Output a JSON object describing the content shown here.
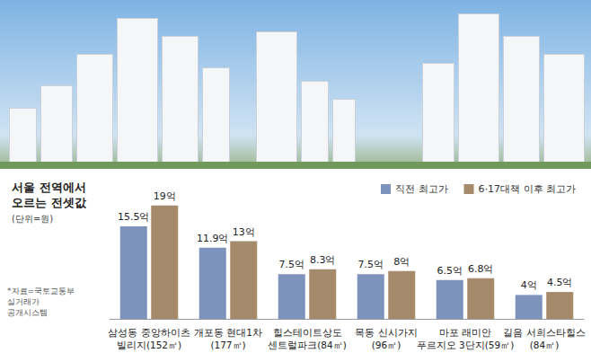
{
  "chart_data": {
    "type": "bar",
    "title": "서울 전역에서\n오르는 전셋값",
    "subtitle": "(단위=원)",
    "source": "*자료=국토교통부\n실거래가\n공개시스템",
    "categories": [
      "삼성동 중앙하이츠\n빌리지(152㎡)",
      "개포동 현대1차\n(177㎡)",
      "힐스테이트상도\n센트럴파크(84㎡)",
      "목동 신시가지\n(96㎡)",
      "마포 래미안\n푸르지오 3단지(59㎡)",
      "길음 서희스타힐스\n(84㎡)"
    ],
    "series": [
      {
        "name": "직전 최고가",
        "color": "#7d93bb",
        "values": [
          15.5,
          11.9,
          7.5,
          7.5,
          6.5,
          4
        ],
        "value_labels": [
          "15.5억",
          "11.9억",
          "7.5억",
          "7.5억",
          "6.5억",
          "4억"
        ]
      },
      {
        "name": "6·17대책 이후 최고가",
        "color": "#a58a6b",
        "values": [
          19,
          13,
          8.3,
          8,
          6.8,
          4.5
        ],
        "value_labels": [
          "19억",
          "13억",
          "8.3억",
          "8억",
          "6.8억",
          "4.5억"
        ]
      }
    ],
    "ylim": [
      0,
      20
    ],
    "data_labels": true,
    "tick_labels": "x",
    "legend": "top-right",
    "grid": false
  }
}
